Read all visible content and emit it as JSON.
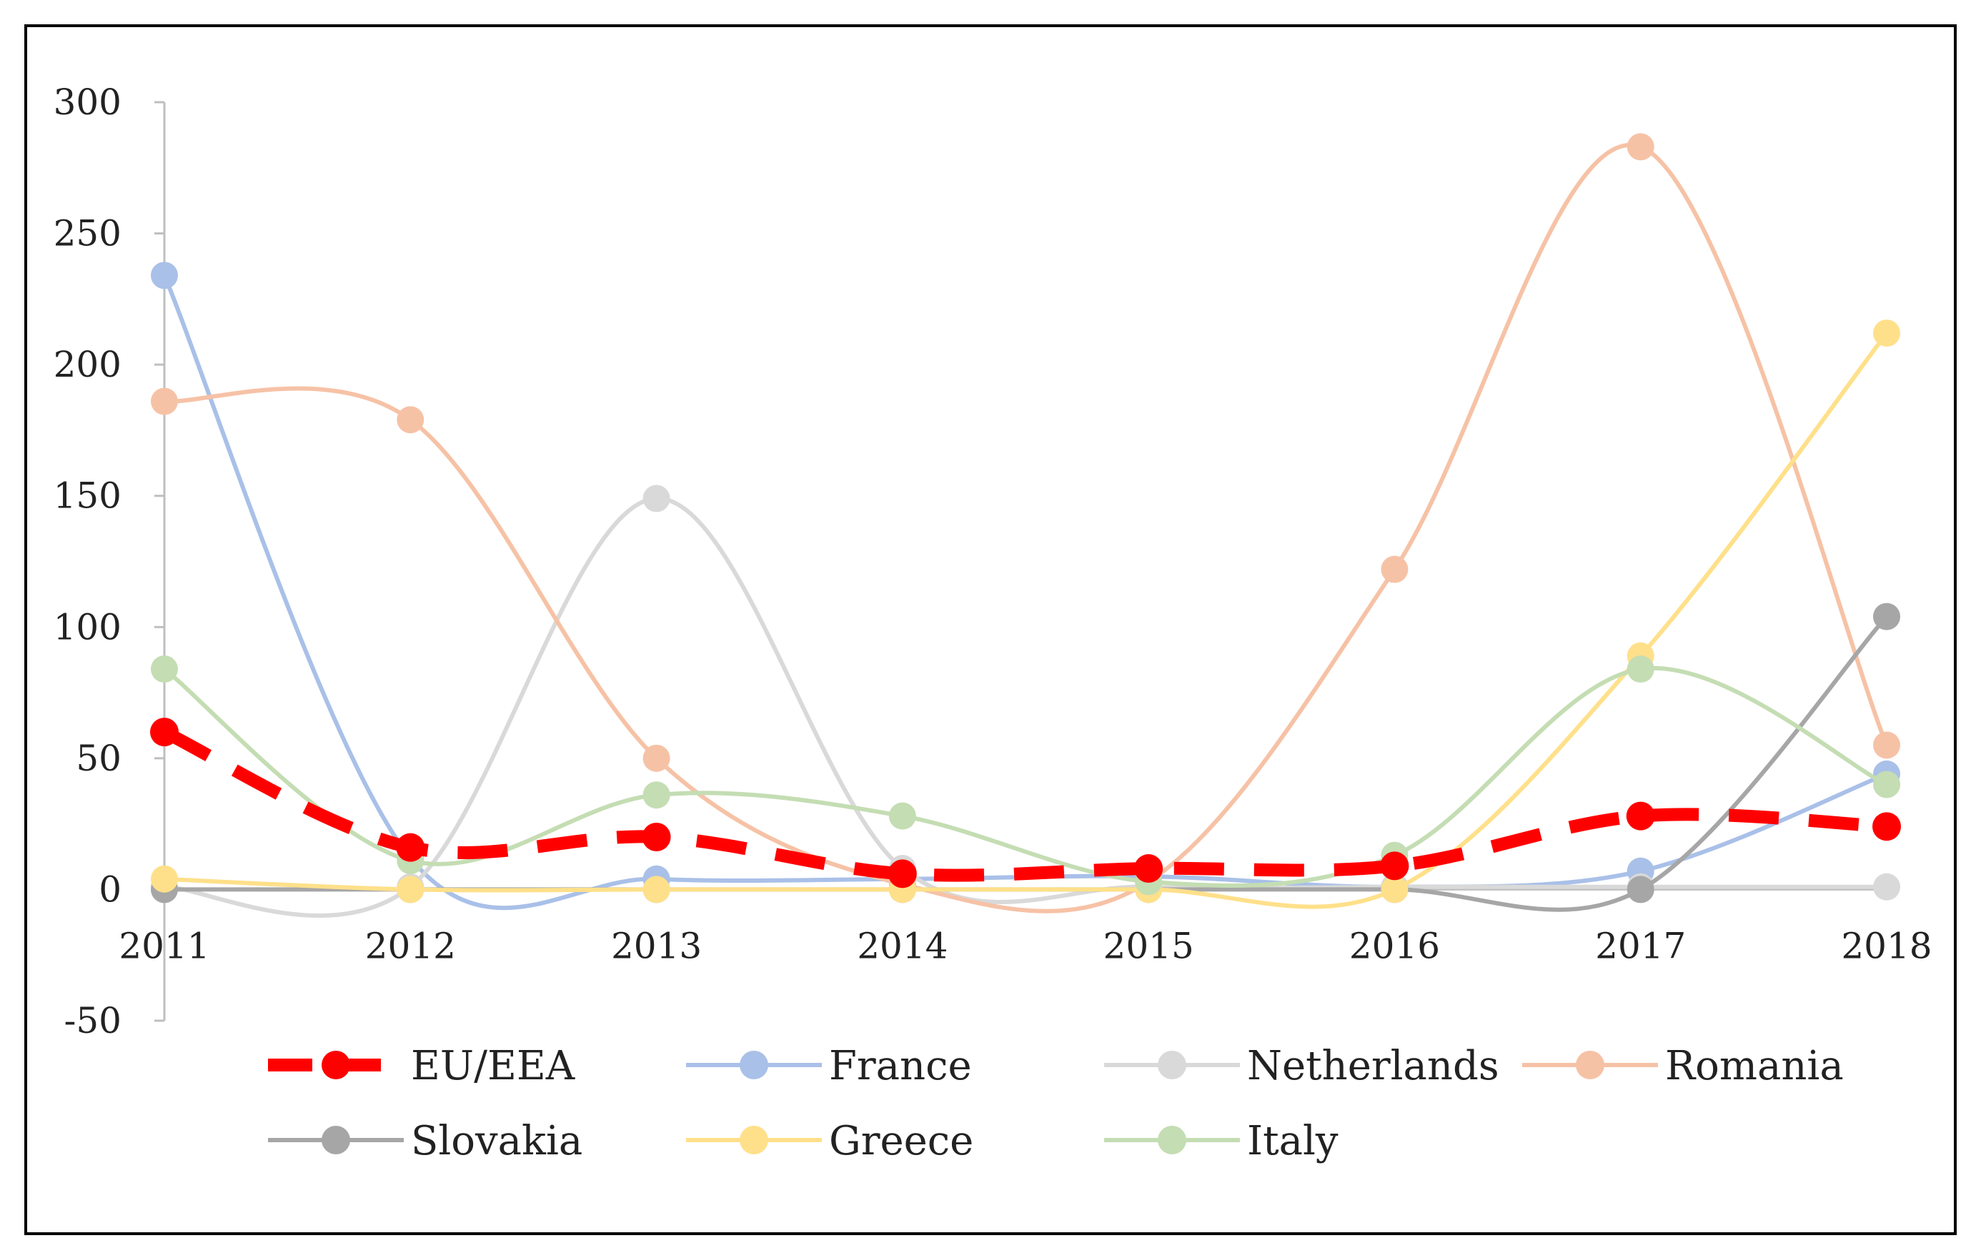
{
  "chart_data": {
    "type": "line",
    "title": "",
    "xlabel": "",
    "ylabel": "",
    "ylim": [
      -50,
      300
    ],
    "yticks": [
      -50,
      0,
      50,
      100,
      150,
      200,
      250,
      300
    ],
    "x": [
      "2011",
      "2012",
      "2013",
      "2014",
      "2015",
      "2016",
      "2017",
      "2018"
    ],
    "grid": false,
    "legend_position": "bottom",
    "series": [
      {
        "name": "France",
        "color": "#a9c0e8",
        "dashed": false,
        "values": [
          234,
          12,
          4,
          4,
          5,
          1,
          7,
          44
        ]
      },
      {
        "name": "Netherlands",
        "color": "#d9d9d9",
        "dashed": false,
        "values": [
          1,
          1,
          149,
          8,
          1,
          1,
          1,
          1
        ]
      },
      {
        "name": "Romania",
        "color": "#f6c2a6",
        "dashed": false,
        "values": [
          186,
          179,
          50,
          2,
          3,
          122,
          283,
          55
        ]
      },
      {
        "name": "Slovakia",
        "color": "#a6a6a6",
        "dashed": false,
        "values": [
          0,
          0,
          0,
          0,
          0,
          0,
          0,
          104
        ]
      },
      {
        "name": "Greece",
        "color": "#ffe08a",
        "dashed": false,
        "values": [
          4,
          0,
          0,
          0,
          0,
          0,
          89,
          212
        ]
      },
      {
        "name": "Italy",
        "color": "#c4ddb3",
        "dashed": false,
        "values": [
          84,
          11,
          36,
          28,
          3,
          13,
          84,
          40
        ]
      },
      {
        "name": "EU/EEA",
        "color": "#ff0000",
        "dashed": true,
        "values": [
          60,
          16,
          20,
          6,
          8,
          9,
          28,
          24
        ]
      }
    ],
    "legend": [
      [
        "EU/EEA",
        "France",
        "Netherlands",
        "Romania"
      ],
      [
        "Slovakia",
        "Greece",
        "Italy"
      ]
    ]
  }
}
